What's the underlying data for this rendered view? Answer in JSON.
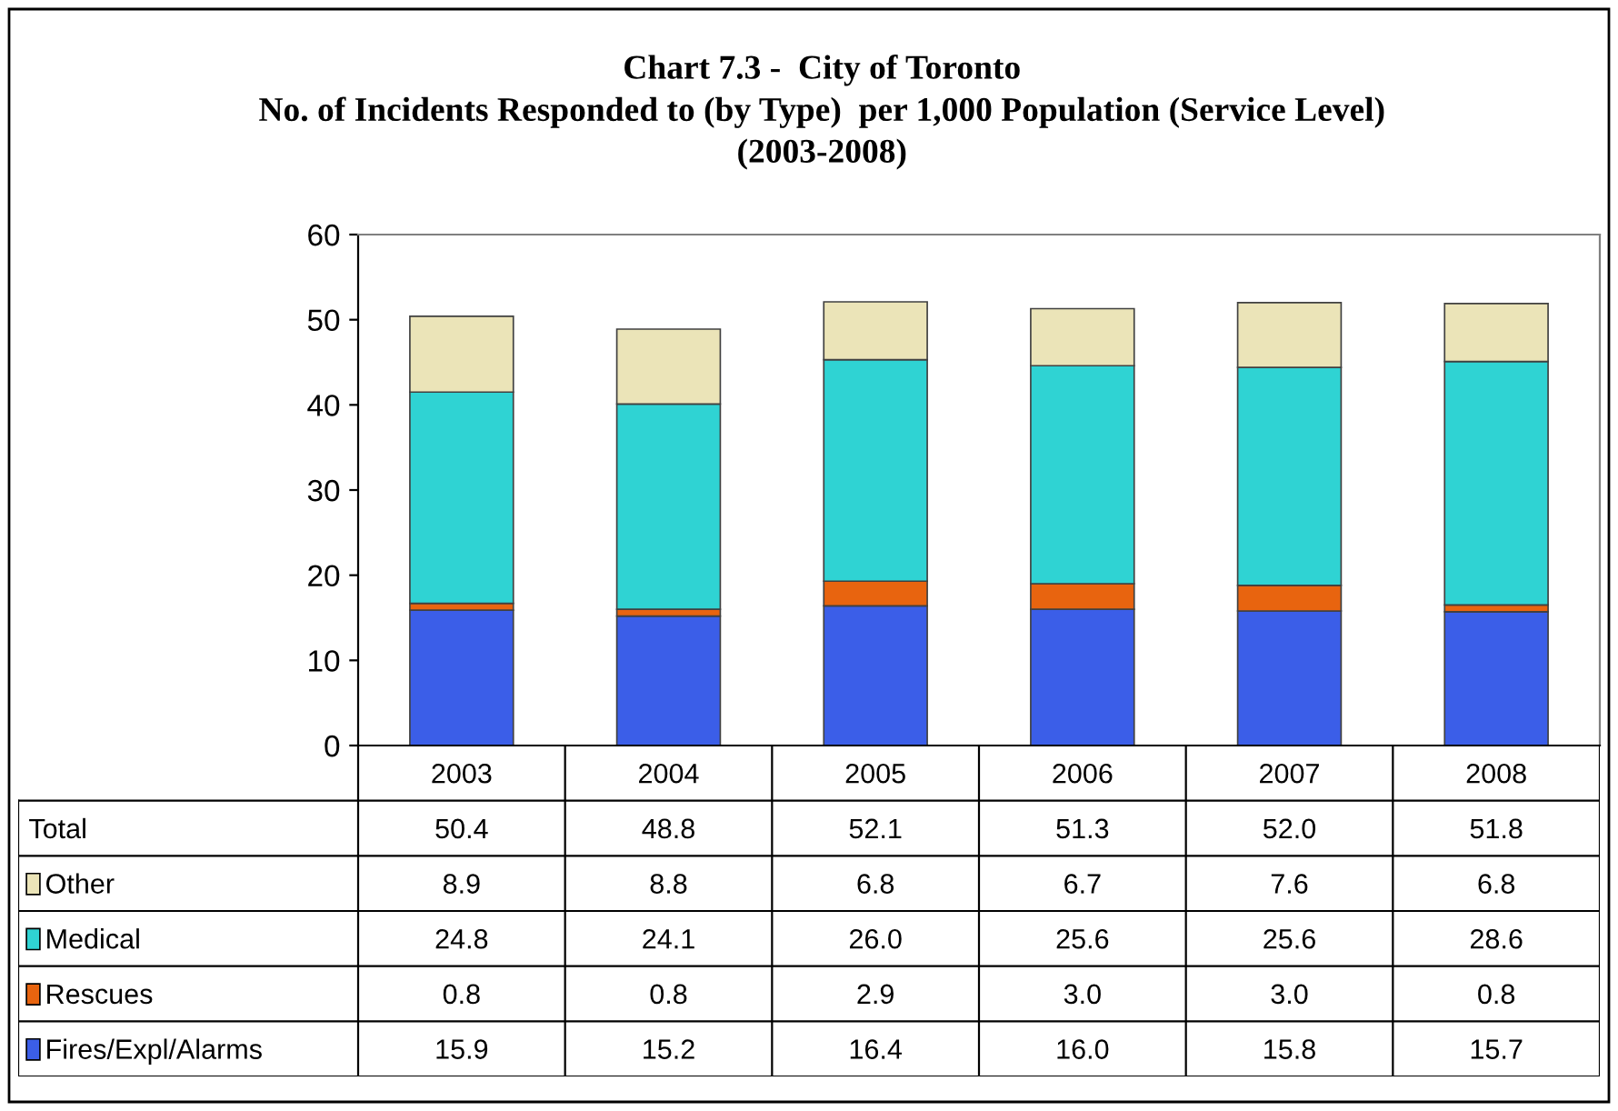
{
  "chart_data": {
    "type": "bar",
    "stacked": true,
    "title": "Chart 7.3 -  City of Toronto\nNo. of Incidents Responded to (by Type)  per 1,000 Population (Service Level)\n(2003-2008)",
    "categories": [
      "2003",
      "2004",
      "2005",
      "2006",
      "2007",
      "2008"
    ],
    "series": [
      {
        "name": "Fires/Expl/Alarms",
        "color": "#3b5ee8",
        "values": [
          15.9,
          15.2,
          16.4,
          16.0,
          15.8,
          15.7
        ],
        "value_labels": [
          "15.9",
          "15.2",
          "16.4",
          "16.0",
          "15.8",
          "15.7"
        ]
      },
      {
        "name": "Rescues",
        "color": "#e8640f",
        "values": [
          0.8,
          0.8,
          2.9,
          3.0,
          3.0,
          0.8
        ],
        "value_labels": [
          "0.8",
          "0.8",
          "2.9",
          "3.0",
          "3.0",
          "0.8"
        ]
      },
      {
        "name": "Medical",
        "color": "#2fd3d3",
        "values": [
          24.8,
          24.1,
          26.0,
          25.6,
          25.6,
          28.6
        ],
        "value_labels": [
          "24.8",
          "24.1",
          "26.0",
          "25.6",
          "25.6",
          "28.6"
        ]
      },
      {
        "name": "Other",
        "color": "#ebe4b8",
        "values": [
          8.9,
          8.8,
          6.8,
          6.7,
          7.6,
          6.8
        ],
        "value_labels": [
          "8.9",
          "8.8",
          "6.8",
          "6.7",
          "7.6",
          "6.8"
        ]
      }
    ],
    "annotations": [
      "Total"
    ],
    "totals": [
      "50.4",
      "48.8",
      "52.1",
      "51.3",
      "52.0",
      "51.8"
    ],
    "ylim": [
      0,
      60
    ],
    "yticks": [
      0,
      10,
      20,
      30,
      40,
      50,
      60
    ],
    "legend": "bottom",
    "grid": false
  }
}
